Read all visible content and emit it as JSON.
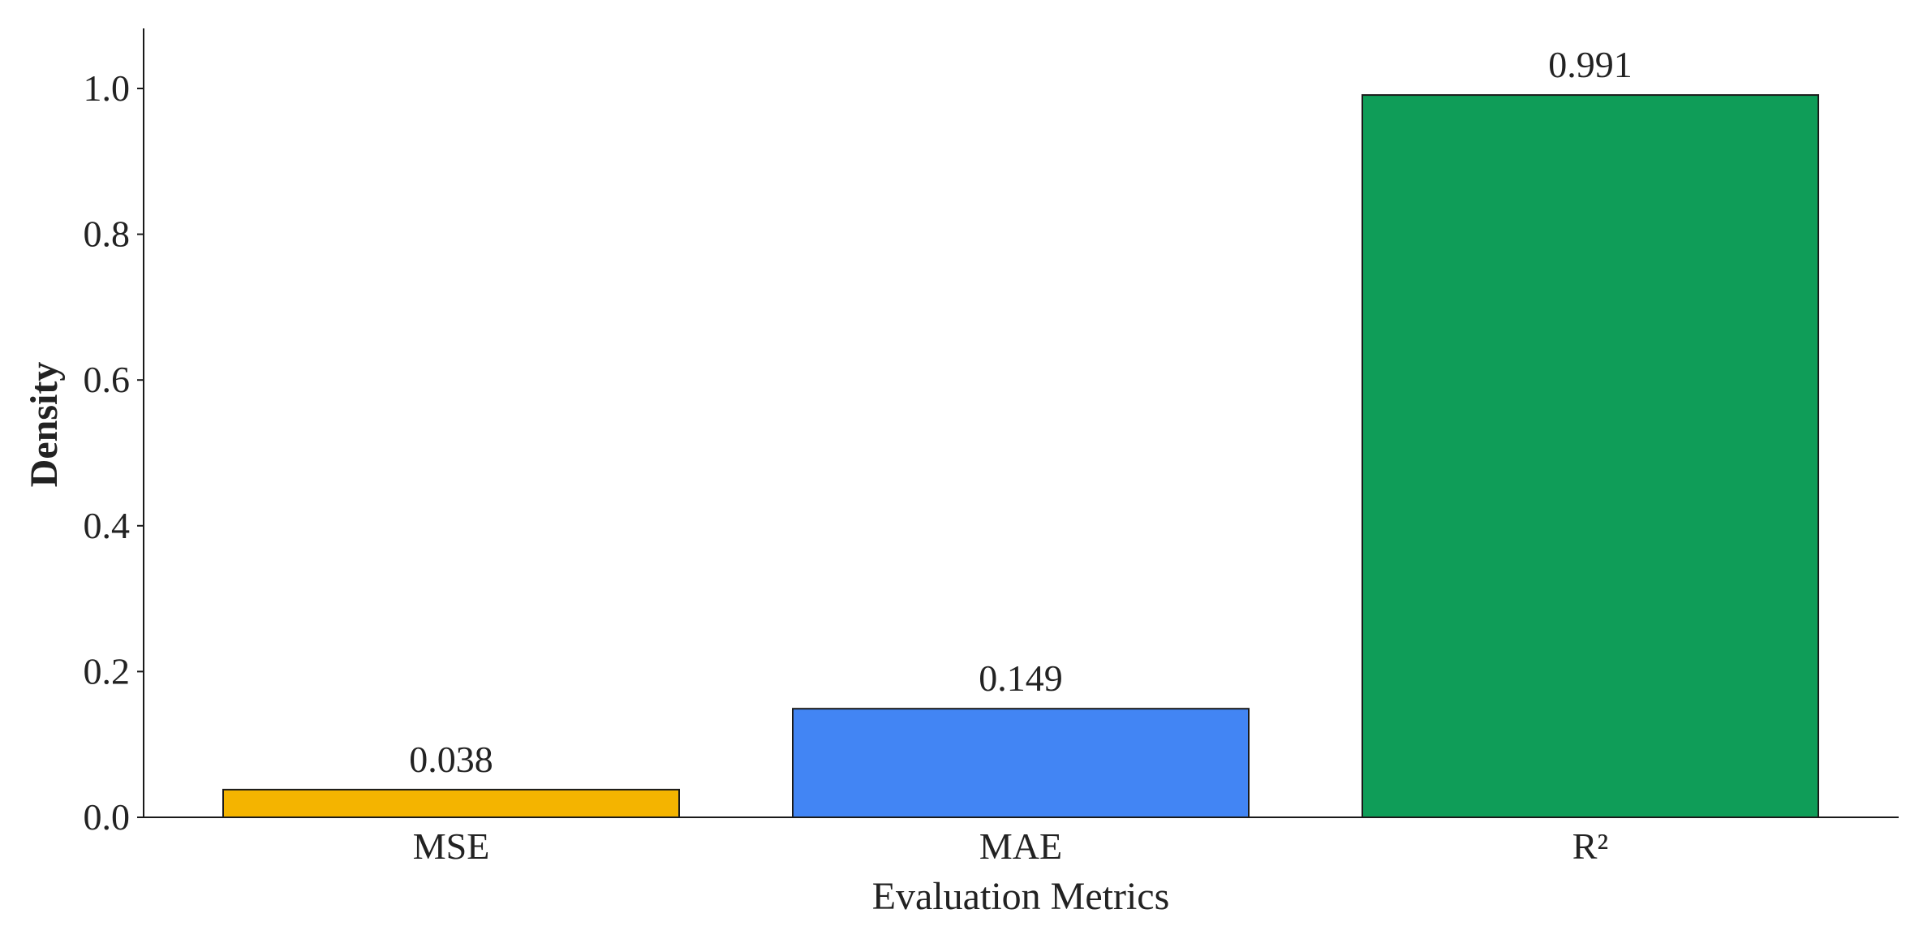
{
  "chart_data": {
    "type": "bar",
    "categories": [
      "MSE",
      "MAE",
      "R²"
    ],
    "values": [
      0.038,
      0.149,
      0.991
    ],
    "value_labels": [
      "0.038",
      "0.149",
      "0.991"
    ],
    "bar_colors": [
      "#F4B400",
      "#4285F4",
      "#0F9D58"
    ],
    "edge_color": "#1a1a1a",
    "xlabel": "Evaluation Metrics",
    "ylabel": "Density",
    "ylim": [
      0,
      1.08
    ],
    "yticks": [
      0.0,
      0.2,
      0.4,
      0.6,
      0.8,
      1.0
    ],
    "ytick_labels": [
      "0.0",
      "0.2",
      "0.4",
      "0.6",
      "0.8",
      "1.0"
    ],
    "grid": false,
    "legend": "none"
  }
}
